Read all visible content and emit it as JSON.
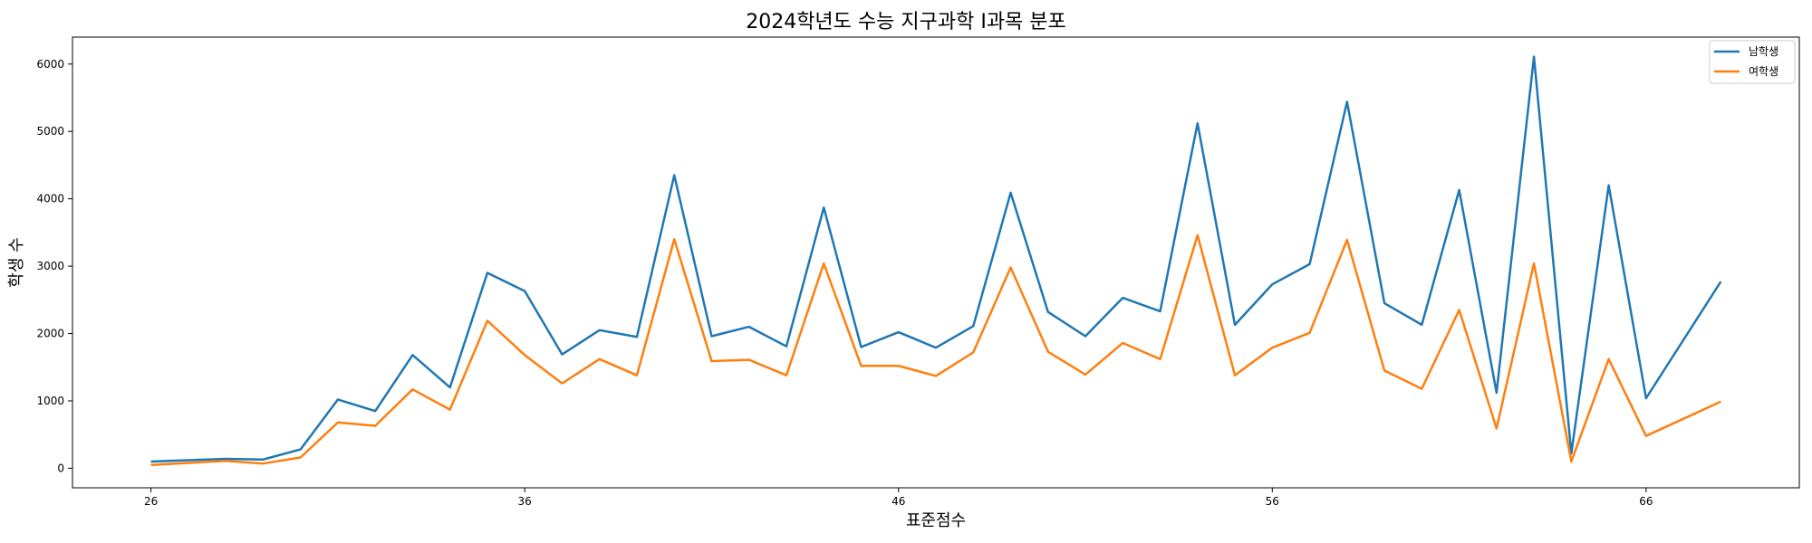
{
  "chart_data": {
    "type": "line",
    "title": "2024학년도 수능 지구과학 I과목 분포",
    "xlabel": "표준점수",
    "ylabel": "학생 수",
    "xlim": [
      23.9,
      70.1
    ],
    "ylim": [
      -290,
      6400
    ],
    "xticks": [
      26,
      36,
      46,
      56,
      66
    ],
    "yticks": [
      0,
      1000,
      2000,
      3000,
      4000,
      5000,
      6000
    ],
    "legend_position": "top-right",
    "grid": false,
    "x": [
      26,
      28,
      29,
      30,
      31,
      32,
      33,
      34,
      35,
      36,
      37,
      38,
      39,
      40,
      41,
      42,
      43,
      44,
      45,
      46,
      47,
      48,
      49,
      50,
      51,
      52,
      53,
      54,
      55,
      56,
      57,
      58,
      59,
      60,
      61,
      62,
      63,
      64,
      65,
      66,
      68
    ],
    "series": [
      {
        "name": "남학생",
        "color": "#1f77b4",
        "values": [
          100,
          140,
          130,
          280,
          1020,
          850,
          1680,
          1200,
          2900,
          2630,
          1690,
          2050,
          1950,
          4350,
          1960,
          2100,
          1810,
          3870,
          1800,
          2020,
          1790,
          2110,
          4090,
          2320,
          1960,
          2530,
          2330,
          5120,
          2130,
          2730,
          3030,
          5440,
          2450,
          2130,
          4130,
          1120,
          6110,
          220,
          4200,
          1040,
          2770
        ]
      },
      {
        "name": "여학생",
        "color": "#ff7f0e",
        "values": [
          50,
          110,
          70,
          160,
          680,
          630,
          1170,
          870,
          2190,
          1680,
          1260,
          1620,
          1380,
          3400,
          1590,
          1610,
          1380,
          3040,
          1520,
          1520,
          1370,
          1720,
          2980,
          1730,
          1390,
          1860,
          1620,
          3460,
          1380,
          1790,
          2010,
          3390,
          1450,
          1180,
          2350,
          590,
          3040,
          100,
          1620,
          480,
          990
        ]
      }
    ]
  }
}
